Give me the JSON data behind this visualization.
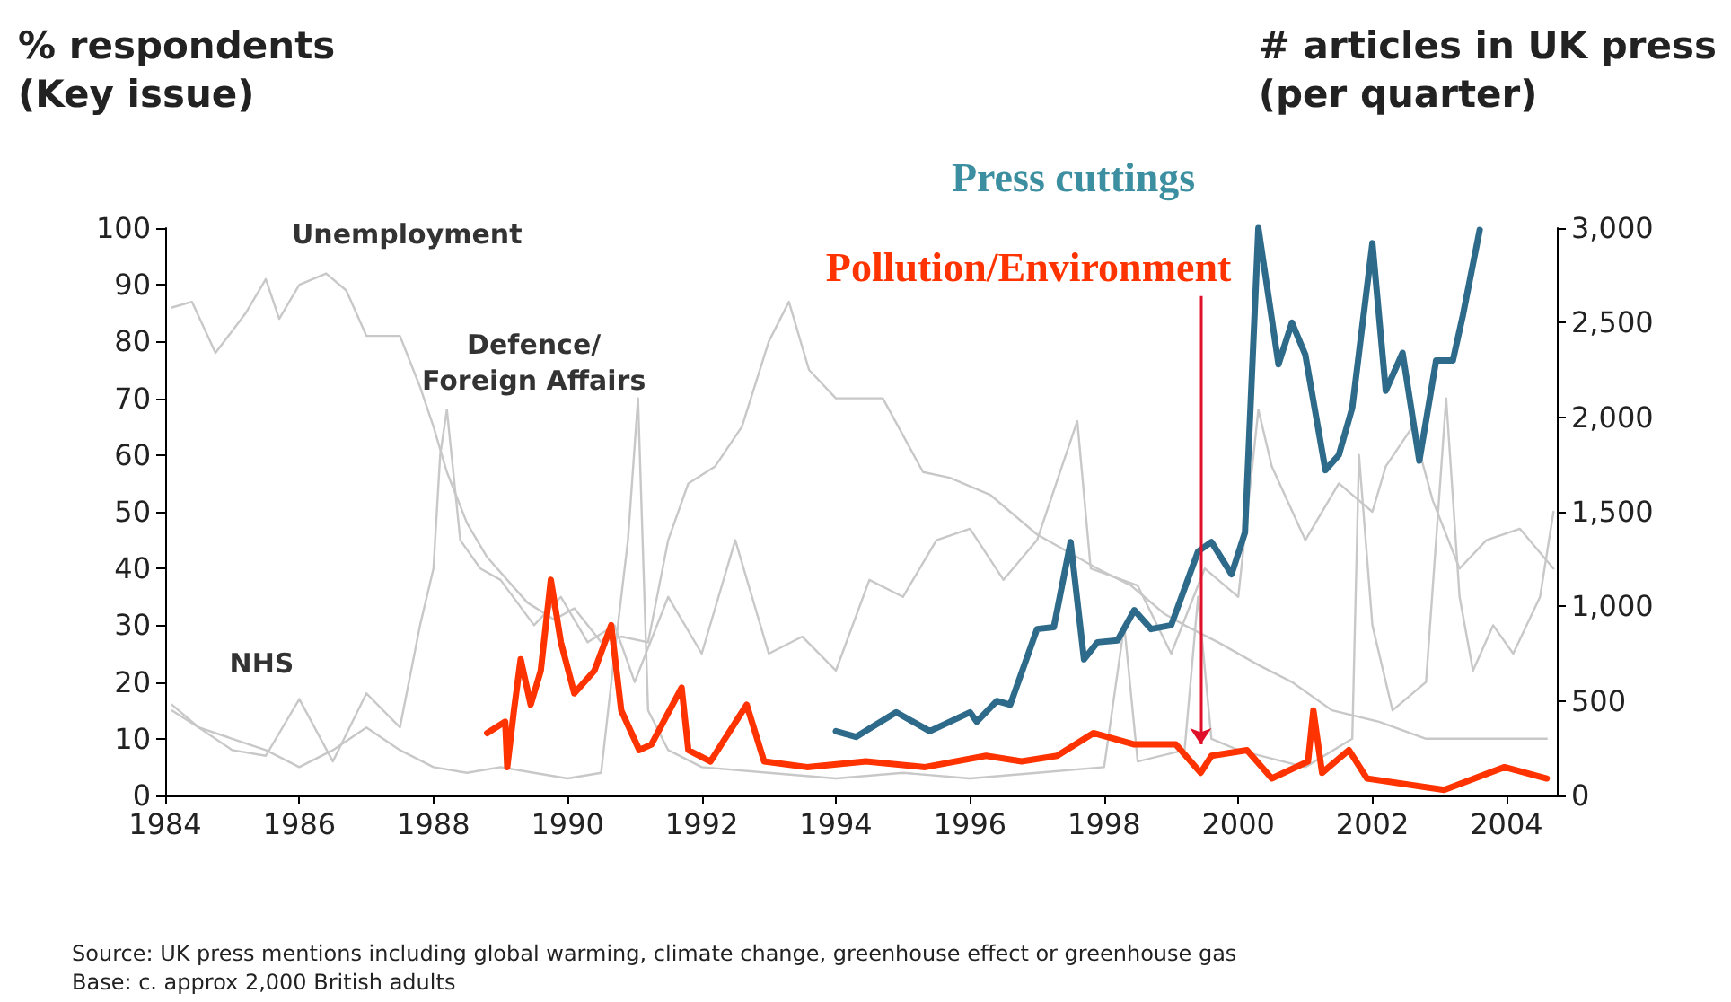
{
  "chart_data": {
    "type": "line",
    "ylabel": "% respondents\n(Key issue)",
    "y2label": "# articles in UK press\n(per quarter)",
    "xlim": [
      1984,
      2004.75
    ],
    "xticks": [
      1984,
      1986,
      1988,
      1990,
      1992,
      1994,
      1996,
      1998,
      2000,
      2002,
      2004
    ],
    "ylim": [
      0,
      100
    ],
    "yticks": [
      0,
      10,
      20,
      30,
      40,
      50,
      60,
      70,
      80,
      90,
      100
    ],
    "y2lim": [
      0,
      3000
    ],
    "y2ticks": [
      0,
      500,
      {
        "value": 1000,
        "label": "1,000"
      },
      {
        "value": 1500,
        "label": "1,500"
      },
      {
        "value": 2000,
        "label": "2,000"
      },
      {
        "value": 2500,
        "label": "2,500"
      },
      {
        "value": 3000,
        "label": "3,000"
      }
    ],
    "grid": false,
    "legend": false,
    "line_style": "solid",
    "series": [
      {
        "name": "Unemployment",
        "color": "#c8c8c8",
        "x": [
          1984.1,
          1984.4,
          1984.75,
          1985.2,
          1985.5,
          1985.7,
          1986.0,
          1986.4,
          1986.7,
          1987.0,
          1987.5,
          1987.8,
          1988.0,
          1988.2,
          1988.5,
          1988.8,
          1989.1,
          1989.4,
          1989.8,
          1990.1,
          1990.5,
          1990.8,
          1991.2,
          1991.5,
          1991.8,
          1992.2,
          1992.6,
          1993.0,
          1993.3,
          1993.6,
          1994.0,
          1994.7,
          1995.3,
          1995.7,
          1996.3,
          1997.0,
          1997.9,
          1998.4,
          1998.9,
          1999.2,
          1999.7,
          2000.3,
          2000.8,
          2001.4,
          2002.1,
          2002.8,
          2003.7,
          2004.6
        ],
        "values": [
          86,
          87,
          78,
          85,
          91,
          84,
          90,
          92,
          89,
          81,
          81,
          72,
          65,
          57,
          48,
          42,
          38,
          34,
          31,
          33,
          27,
          28,
          27,
          45,
          55,
          58,
          65,
          80,
          87,
          75,
          70,
          70,
          57,
          56,
          53,
          46,
          40,
          37,
          32,
          30,
          27,
          23,
          20,
          15,
          13,
          10,
          10,
          10
        ]
      },
      {
        "name": "Defence/\nForeign Affairs",
        "color": "#c8c8c8",
        "x": [
          1984.1,
          1984.5,
          1985,
          1985.5,
          1986,
          1986.5,
          1987,
          1987.5,
          1988,
          1988.5,
          1989,
          1989.5,
          1990,
          1990.5,
          1990.7,
          1990.9,
          1991.05,
          1991.2,
          1991.5,
          1992,
          1993,
          1994,
          1995,
          1996,
          1997,
          1998,
          1998.3,
          1998.5,
          1999.2,
          1999.4,
          1999.6,
          2000,
          2001,
          2001.7,
          2001.8,
          2002,
          2002.3,
          2002.8,
          2003.1,
          2003.3,
          2003.5,
          2003.8,
          2004.1,
          2004.5,
          2004.7
        ],
        "values": [
          16,
          12,
          10,
          8,
          5,
          8,
          12,
          8,
          5,
          4,
          5,
          4,
          3,
          4,
          25,
          45,
          70,
          15,
          8,
          5,
          4,
          3,
          4,
          3,
          4,
          5,
          30,
          6,
          8,
          35,
          10,
          8,
          5,
          10,
          60,
          30,
          15,
          20,
          70,
          35,
          22,
          30,
          25,
          35,
          50
        ]
      },
      {
        "name": "NHS",
        "color": "#c8c8c8",
        "x": [
          1984.1,
          1984.5,
          1985,
          1985.5,
          1986,
          1986.5,
          1987,
          1987.5,
          1987.8,
          1988.0,
          1988.1,
          1988.2,
          1988.4,
          1988.7,
          1989,
          1989.5,
          1989.9,
          1990.3,
          1990.7,
          1991,
          1991.5,
          1992,
          1992.5,
          1993,
          1993.5,
          1994,
          1994.5,
          1995,
          1995.5,
          1996,
          1996.5,
          1997,
          1997.6,
          1997.8,
          1998.5,
          1999,
          1999.5,
          2000,
          2000.3,
          2000.5,
          2001,
          2001.5,
          2002,
          2002.2,
          2002.6,
          2002.9,
          2003.3,
          2003.7,
          2004.2,
          2004.7
        ],
        "values": [
          15,
          12,
          8,
          7,
          17,
          6,
          18,
          12,
          30,
          40,
          60,
          68,
          45,
          40,
          38,
          30,
          35,
          27,
          30,
          20,
          35,
          25,
          45,
          25,
          28,
          22,
          38,
          35,
          45,
          47,
          38,
          45,
          66,
          40,
          37,
          25,
          40,
          35,
          68,
          58,
          45,
          55,
          50,
          58,
          65,
          52,
          40,
          45,
          47,
          40
        ]
      },
      {
        "name": "Pollution/Environment",
        "color": "#ff3300",
        "x": [
          1988.8,
          1989.07,
          1989.1,
          1989.2,
          1989.3,
          1989.45,
          1989.6,
          1989.75,
          1989.9,
          1990.1,
          1990.4,
          1990.65,
          1990.8,
          1991.07,
          1991.25,
          1991.7,
          1991.8,
          1992.13,
          1992.67,
          1992.93,
          1993.57,
          1994.45,
          1995.33,
          1996.24,
          1996.77,
          1997.3,
          1997.84,
          1998.45,
          1999.07,
          1999.44,
          1999.6,
          2000.13,
          2000.5,
          2001.04,
          2001.12,
          2001.25,
          2001.65,
          2001.92,
          2003.07,
          2003.97,
          2004.6
        ],
        "values": [
          11,
          13,
          5,
          15,
          24,
          16,
          22,
          38,
          27,
          18,
          22,
          30,
          15,
          8,
          9,
          19,
          8,
          6,
          16,
          6,
          5,
          6,
          5,
          7,
          6,
          7,
          11,
          9,
          9,
          4,
          7,
          8,
          3,
          6,
          15,
          4,
          8,
          3,
          1,
          5,
          3
        ]
      },
      {
        "name": "Press cuttings",
        "color": "#2e6b8a",
        "axis": "y2",
        "x": [
          1994.0,
          1994.3,
          1994.9,
          1995.4,
          1996.0,
          1996.1,
          1996.4,
          1996.6,
          1997.0,
          1997.25,
          1997.5,
          1997.7,
          1997.9,
          1998.2,
          1998.45,
          1998.7,
          1999.0,
          1999.4,
          1999.6,
          1999.9,
          2000.1,
          2000.3,
          2000.6,
          2000.8,
          2001.0,
          2001.3,
          2001.5,
          2001.7,
          2002.0,
          2002.2,
          2002.45,
          2002.7,
          2002.95,
          2003.2,
          2003.35,
          2003.6
        ],
        "values": [
          340,
          310,
          440,
          340,
          440,
          390,
          500,
          480,
          880,
          890,
          1340,
          720,
          810,
          820,
          980,
          880,
          900,
          1290,
          1340,
          1170,
          1390,
          3000,
          2280,
          2500,
          2330,
          1720,
          1800,
          2050,
          2920,
          2140,
          2340,
          1770,
          2300,
          2300,
          2540,
          2990
        ]
      }
    ],
    "annotations": [
      "Source: UK press mentions including global warming, climate change, greenhouse effect or greenhouse gas",
      "Base: c. approx 2,000 British adults"
    ]
  }
}
